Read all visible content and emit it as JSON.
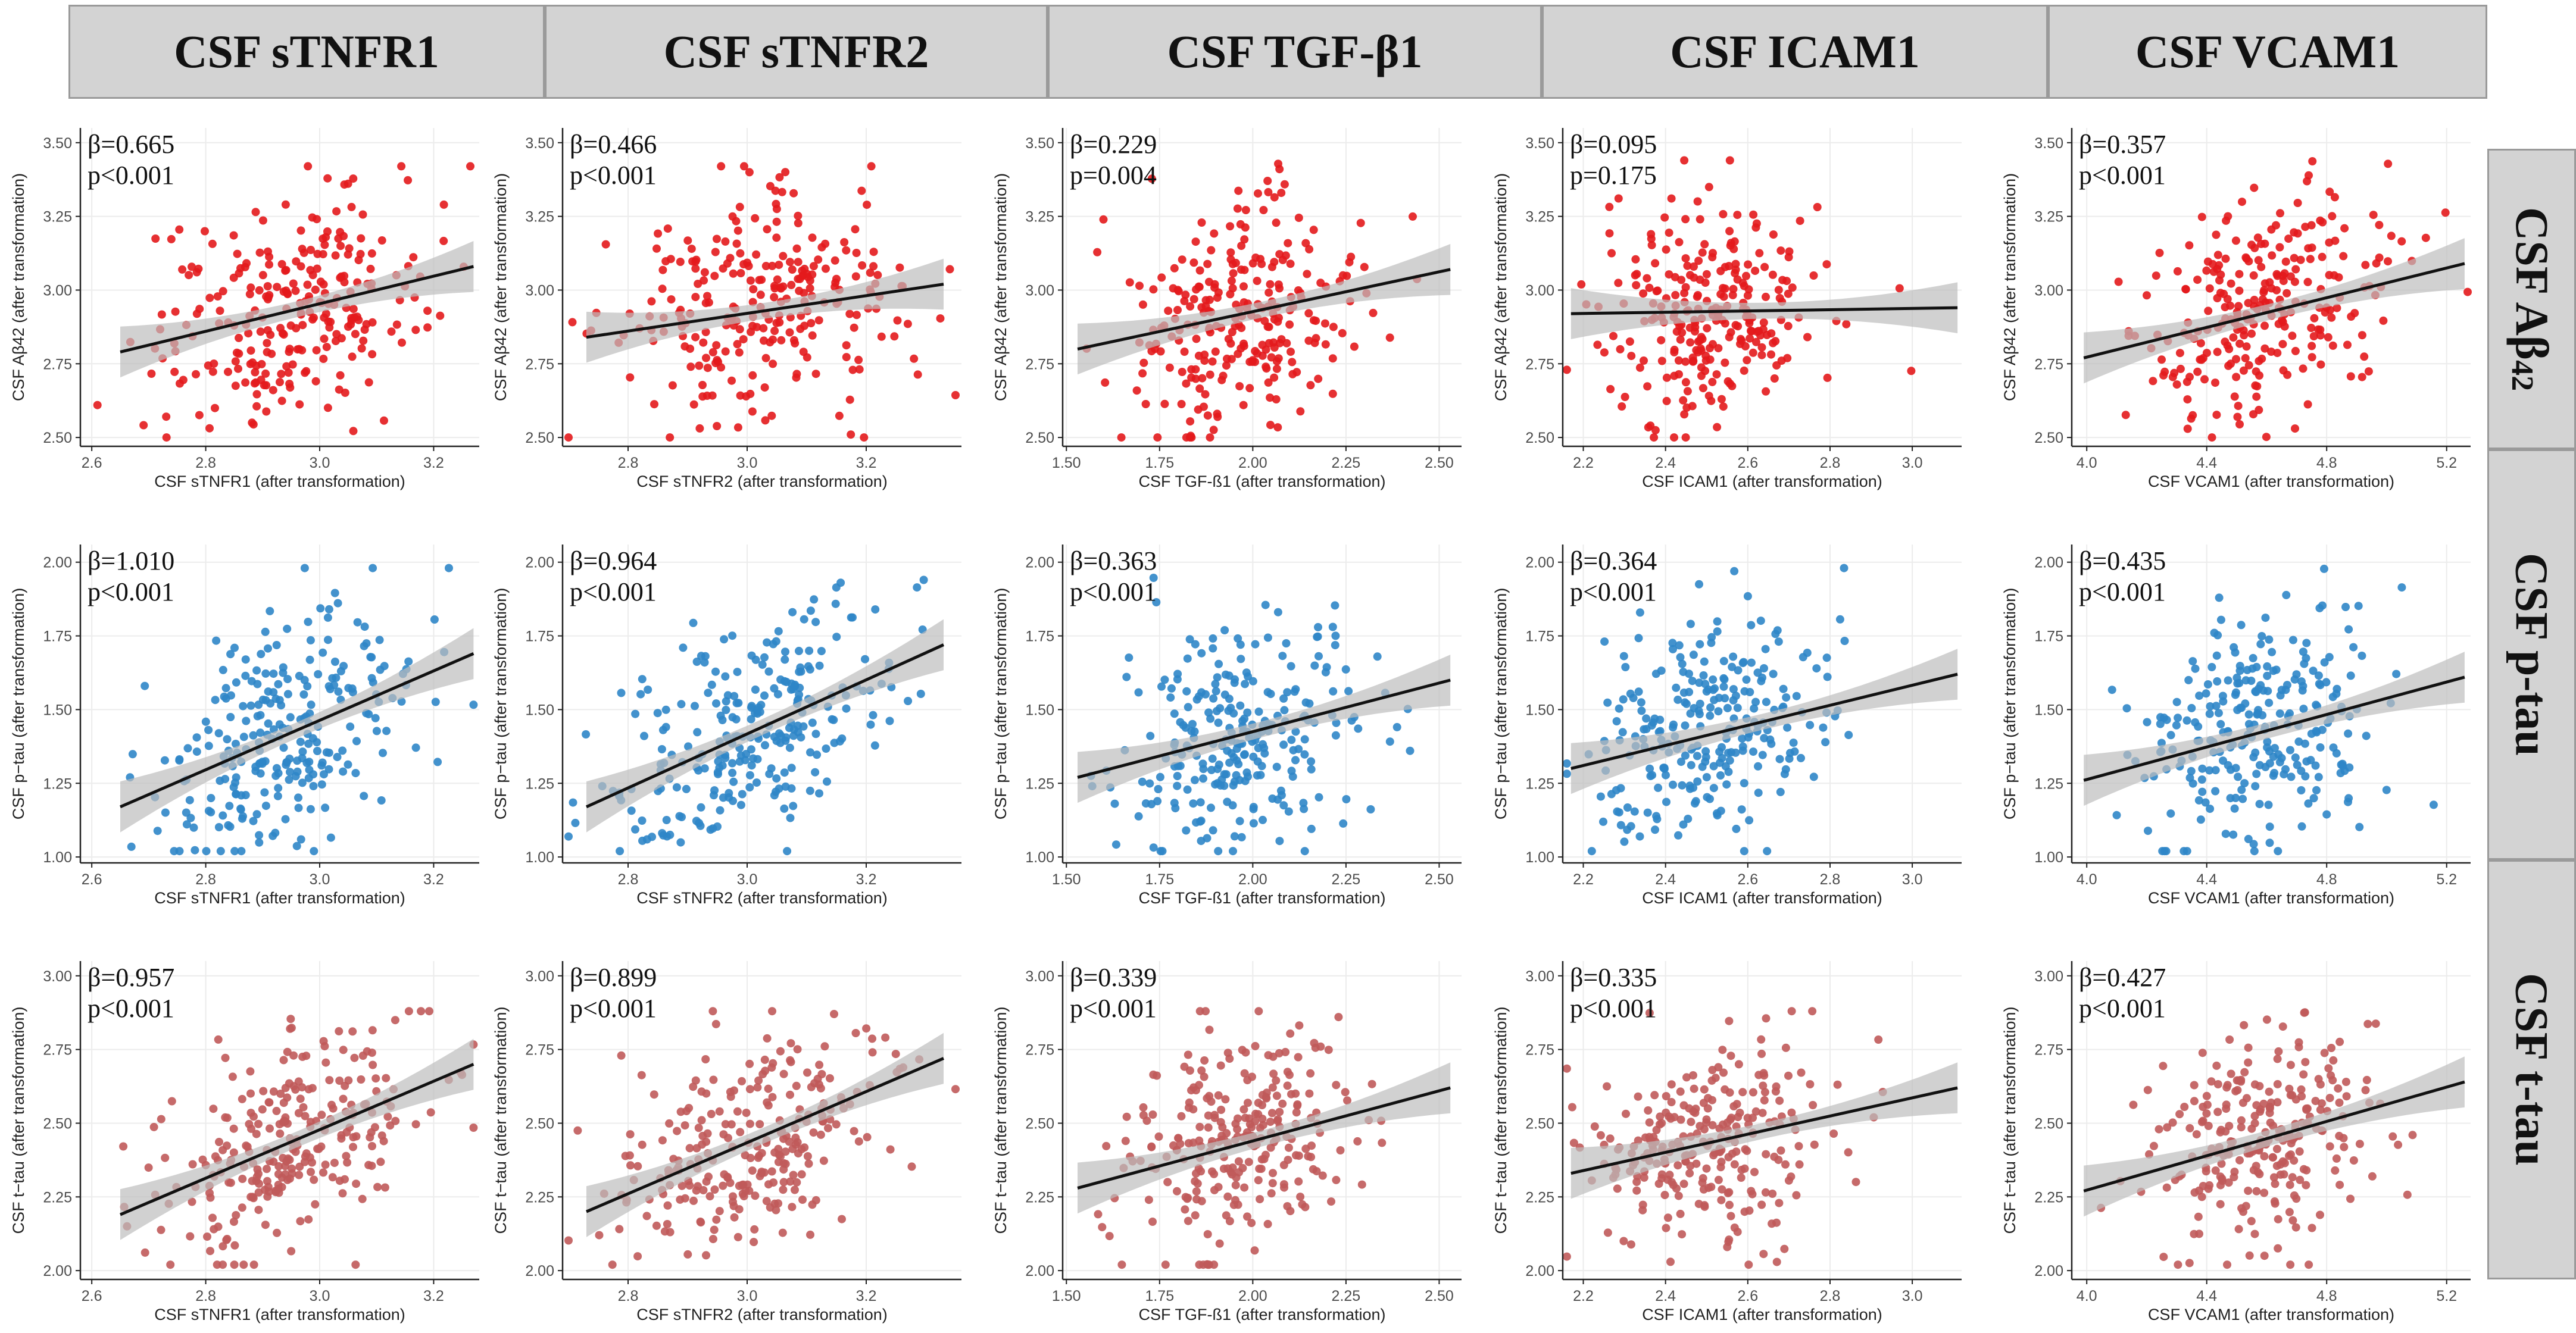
{
  "column_headers": [
    "CSF sTNFR1",
    "CSF sTNFR2",
    "CSF TGF-β1",
    "CSF ICAM1",
    "CSF VCAM1"
  ],
  "row_headers": [
    {
      "main": "CSF Aβ",
      "sub": "42"
    },
    {
      "main": "CSF p-tau",
      "sub": ""
    },
    {
      "main": "CSF t-tau",
      "sub": ""
    }
  ],
  "colors": {
    "abeta": "#e31a1c",
    "ptau": "#2f86c8",
    "ttau": "#c05a5a",
    "line": "#111111",
    "band": "#bdbdbd",
    "header_bg": "#d3d3d3"
  },
  "chart_data": [
    {
      "type": "scatter",
      "panel": "r1c1",
      "title": "",
      "xlabel": "CSF sTNFR1 (after transformation)",
      "ylabel": "CSF Aβ42 (after transformation)",
      "xlim": [
        2.58,
        3.28
      ],
      "ylim": [
        2.47,
        3.55
      ],
      "xticks": [
        "2.6",
        "2.8",
        "3.0",
        "3.2"
      ],
      "yticks": [
        "2.50",
        "2.75",
        "3.00",
        "3.25",
        "3.50"
      ],
      "beta": "β=0.665",
      "p": "p<0.001",
      "fit": {
        "x": [
          2.65,
          3.27
        ],
        "y": [
          2.79,
          3.08
        ]
      },
      "color_key": "abeta",
      "n_points": 260,
      "x_center": 2.94,
      "x_spread": 0.12,
      "y_range": [
        2.5,
        3.42
      ]
    },
    {
      "type": "scatter",
      "panel": "r1c2",
      "title": "",
      "xlabel": "CSF sTNFR2 (after transformation)",
      "ylabel": "CSF Aβ42 (after transformation)",
      "xlim": [
        2.69,
        3.36
      ],
      "ylim": [
        2.47,
        3.55
      ],
      "xticks": [
        "2.8",
        "3.0",
        "3.2"
      ],
      "yticks": [
        "2.50",
        "2.75",
        "3.00",
        "3.25",
        "3.50"
      ],
      "beta": "β=0.466",
      "p": "p<0.001",
      "fit": {
        "x": [
          2.73,
          3.33
        ],
        "y": [
          2.84,
          3.02
        ]
      },
      "color_key": "abeta",
      "n_points": 260,
      "x_center": 3.01,
      "x_spread": 0.12,
      "y_range": [
        2.5,
        3.42
      ]
    },
    {
      "type": "scatter",
      "panel": "r1c3",
      "title": "",
      "xlabel": "CSF TGF-ß1 (after transformation)",
      "ylabel": "CSF Aβ42 (after transformation)",
      "xlim": [
        1.49,
        2.56
      ],
      "ylim": [
        2.47,
        3.55
      ],
      "xticks": [
        "1.50",
        "1.75",
        "2.00",
        "2.25",
        "2.50"
      ],
      "yticks": [
        "2.50",
        "2.75",
        "3.00",
        "3.25",
        "3.50"
      ],
      "beta": "β=0.229",
      "p": "p=0.004",
      "fit": {
        "x": [
          1.53,
          2.53
        ],
        "y": [
          2.8,
          3.07
        ]
      },
      "color_key": "abeta",
      "n_points": 260,
      "x_center": 1.97,
      "x_spread": 0.15,
      "y_range": [
        2.5,
        3.44
      ]
    },
    {
      "type": "scatter",
      "panel": "r1c4",
      "title": "",
      "xlabel": "CSF ICAM1 (after transformation)",
      "ylabel": "CSF Aβ42 (after transformation)",
      "xlim": [
        2.15,
        3.12
      ],
      "ylim": [
        2.47,
        3.55
      ],
      "xticks": [
        "2.2",
        "2.4",
        "2.6",
        "2.8",
        "3.0"
      ],
      "yticks": [
        "2.50",
        "2.75",
        "3.00",
        "3.25",
        "3.50"
      ],
      "beta": "β=0.095",
      "p": "p=0.175",
      "fit": {
        "x": [
          2.17,
          3.11
        ],
        "y": [
          2.92,
          2.94
        ]
      },
      "color_key": "abeta",
      "n_points": 260,
      "x_center": 2.5,
      "x_spread": 0.14,
      "y_range": [
        2.5,
        3.44
      ]
    },
    {
      "type": "scatter",
      "panel": "r1c5",
      "title": "",
      "xlabel": "CSF VCAM1 (after transformation)",
      "ylabel": "CSF Aβ42 (after transformation)",
      "xlim": [
        3.95,
        5.28
      ],
      "ylim": [
        2.47,
        3.55
      ],
      "xticks": [
        "4.0",
        "4.4",
        "4.8",
        "5.2"
      ],
      "yticks": [
        "2.50",
        "2.75",
        "3.00",
        "3.25",
        "3.50"
      ],
      "beta": "β=0.357",
      "p": "p<0.001",
      "fit": {
        "x": [
          3.99,
          5.26
        ],
        "y": [
          2.77,
          3.09
        ]
      },
      "color_key": "abeta",
      "n_points": 260,
      "x_center": 4.58,
      "x_spread": 0.2,
      "y_range": [
        2.5,
        3.44
      ]
    },
    {
      "type": "scatter",
      "panel": "r2c1",
      "title": "",
      "xlabel": "CSF sTNFR1 (after transformation)",
      "ylabel": "CSF p−tau (after transformation)",
      "xlim": [
        2.58,
        3.28
      ],
      "ylim": [
        0.98,
        2.06
      ],
      "xticks": [
        "2.6",
        "2.8",
        "3.0",
        "3.2"
      ],
      "yticks": [
        "1.00",
        "1.25",
        "1.50",
        "1.75",
        "2.00"
      ],
      "beta": "β=1.010",
      "p": "p<0.001",
      "fit": {
        "x": [
          2.65,
          3.27
        ],
        "y": [
          1.17,
          1.69
        ]
      },
      "color_key": "ptau",
      "n_points": 260,
      "x_center": 2.94,
      "x_spread": 0.12,
      "y_range": [
        1.02,
        1.98
      ]
    },
    {
      "type": "scatter",
      "panel": "r2c2",
      "title": "",
      "xlabel": "CSF sTNFR2 (after transformation)",
      "ylabel": "CSF p−tau (after transformation)",
      "xlim": [
        2.69,
        3.36
      ],
      "ylim": [
        0.98,
        2.06
      ],
      "xticks": [
        "2.8",
        "3.0",
        "3.2"
      ],
      "yticks": [
        "1.00",
        "1.25",
        "1.50",
        "1.75",
        "2.00"
      ],
      "beta": "β=0.964",
      "p": "p<0.001",
      "fit": {
        "x": [
          2.73,
          3.33
        ],
        "y": [
          1.17,
          1.72
        ]
      },
      "color_key": "ptau",
      "n_points": 260,
      "x_center": 3.01,
      "x_spread": 0.12,
      "y_range": [
        1.02,
        1.98
      ]
    },
    {
      "type": "scatter",
      "panel": "r2c3",
      "title": "",
      "xlabel": "CSF TGF-ß1 (after transformation)",
      "ylabel": "CSF p−tau (after transformation)",
      "xlim": [
        1.49,
        2.56
      ],
      "ylim": [
        0.98,
        2.06
      ],
      "xticks": [
        "1.50",
        "1.75",
        "2.00",
        "2.25",
        "2.50"
      ],
      "yticks": [
        "1.00",
        "1.25",
        "1.50",
        "1.75",
        "2.00"
      ],
      "beta": "β=0.363",
      "p": "p<0.001",
      "fit": {
        "x": [
          1.53,
          2.53
        ],
        "y": [
          1.27,
          1.6
        ]
      },
      "color_key": "ptau",
      "n_points": 260,
      "x_center": 1.97,
      "x_spread": 0.15,
      "y_range": [
        1.02,
        1.98
      ]
    },
    {
      "type": "scatter",
      "panel": "r2c4",
      "title": "",
      "xlabel": "CSF ICAM1 (after transformation)",
      "ylabel": "CSF p−tau (after transformation)",
      "xlim": [
        2.15,
        3.12
      ],
      "ylim": [
        0.98,
        2.06
      ],
      "xticks": [
        "2.2",
        "2.4",
        "2.6",
        "2.8",
        "3.0"
      ],
      "yticks": [
        "1.00",
        "1.25",
        "1.50",
        "1.75",
        "2.00"
      ],
      "beta": "β=0.364",
      "p": "p<0.001",
      "fit": {
        "x": [
          2.17,
          3.11
        ],
        "y": [
          1.3,
          1.62
        ]
      },
      "color_key": "ptau",
      "n_points": 260,
      "x_center": 2.5,
      "x_spread": 0.14,
      "y_range": [
        1.02,
        1.98
      ]
    },
    {
      "type": "scatter",
      "panel": "r2c5",
      "title": "",
      "xlabel": "CSF VCAM1 (after transformation)",
      "ylabel": "CSF p−tau (after transformation)",
      "xlim": [
        3.95,
        5.28
      ],
      "ylim": [
        0.98,
        2.06
      ],
      "xticks": [
        "4.0",
        "4.4",
        "4.8",
        "5.2"
      ],
      "yticks": [
        "1.00",
        "1.25",
        "1.50",
        "1.75",
        "2.00"
      ],
      "beta": "β=0.435",
      "p": "p<0.001",
      "fit": {
        "x": [
          3.99,
          5.26
        ],
        "y": [
          1.26,
          1.61
        ]
      },
      "color_key": "ptau",
      "n_points": 260,
      "x_center": 4.58,
      "x_spread": 0.2,
      "y_range": [
        1.02,
        1.98
      ]
    },
    {
      "type": "scatter",
      "panel": "r3c1",
      "title": "",
      "xlabel": "CSF sTNFR1 (after transformation)",
      "ylabel": "CSF t−tau (after transformation)",
      "xlim": [
        2.58,
        3.28
      ],
      "ylim": [
        1.97,
        3.05
      ],
      "xticks": [
        "2.6",
        "2.8",
        "3.0",
        "3.2"
      ],
      "yticks": [
        "2.00",
        "2.25",
        "2.50",
        "2.75",
        "3.00"
      ],
      "beta": "β=0.957",
      "p": "p<0.001",
      "fit": {
        "x": [
          2.65,
          3.27
        ],
        "y": [
          2.19,
          2.7
        ]
      },
      "color_key": "ttau",
      "n_points": 260,
      "x_center": 2.94,
      "x_spread": 0.12,
      "y_range": [
        2.02,
        2.88
      ]
    },
    {
      "type": "scatter",
      "panel": "r3c2",
      "title": "",
      "xlabel": "CSF sTNFR2 (after transformation)",
      "ylabel": "CSF t−tau (after transformation)",
      "xlim": [
        2.69,
        3.36
      ],
      "ylim": [
        1.97,
        3.05
      ],
      "xticks": [
        "2.8",
        "3.0",
        "3.2"
      ],
      "yticks": [
        "2.00",
        "2.25",
        "2.50",
        "2.75",
        "3.00"
      ],
      "beta": "β=0.899",
      "p": "p<0.001",
      "fit": {
        "x": [
          2.73,
          3.33
        ],
        "y": [
          2.2,
          2.72
        ]
      },
      "color_key": "ttau",
      "n_points": 260,
      "x_center": 3.01,
      "x_spread": 0.12,
      "y_range": [
        2.02,
        2.88
      ]
    },
    {
      "type": "scatter",
      "panel": "r3c3",
      "title": "",
      "xlabel": "CSF TGF-ß1 (after transformation)",
      "ylabel": "CSF t−tau (after transformation)",
      "xlim": [
        1.49,
        2.56
      ],
      "ylim": [
        1.97,
        3.05
      ],
      "xticks": [
        "1.50",
        "1.75",
        "2.00",
        "2.25",
        "2.50"
      ],
      "yticks": [
        "2.00",
        "2.25",
        "2.50",
        "2.75",
        "3.00"
      ],
      "beta": "β=0.339",
      "p": "p<0.001",
      "fit": {
        "x": [
          1.53,
          2.53
        ],
        "y": [
          2.28,
          2.62
        ]
      },
      "color_key": "ttau",
      "n_points": 260,
      "x_center": 1.97,
      "x_spread": 0.15,
      "y_range": [
        2.02,
        2.88
      ]
    },
    {
      "type": "scatter",
      "panel": "r3c4",
      "title": "",
      "xlabel": "CSF ICAM1 (after transformation)",
      "ylabel": "CSF t−tau (after transformation)",
      "xlim": [
        2.15,
        3.12
      ],
      "ylim": [
        1.97,
        3.05
      ],
      "xticks": [
        "2.2",
        "2.4",
        "2.6",
        "2.8",
        "3.0"
      ],
      "yticks": [
        "2.00",
        "2.25",
        "2.50",
        "2.75",
        "3.00"
      ],
      "beta": "β=0.335",
      "p": "p<0.001",
      "fit": {
        "x": [
          2.17,
          3.11
        ],
        "y": [
          2.33,
          2.62
        ]
      },
      "color_key": "ttau",
      "n_points": 260,
      "x_center": 2.5,
      "x_spread": 0.14,
      "y_range": [
        2.02,
        2.88
      ]
    },
    {
      "type": "scatter",
      "panel": "r3c5",
      "title": "",
      "xlabel": "CSF VCAM1 (after transformation)",
      "ylabel": "CSF t−tau (after transformation)",
      "xlim": [
        3.95,
        5.28
      ],
      "ylim": [
        1.97,
        3.05
      ],
      "xticks": [
        "4.0",
        "4.4",
        "4.8",
        "5.2"
      ],
      "yticks": [
        "2.00",
        "2.25",
        "2.50",
        "2.75",
        "3.00"
      ],
      "beta": "β=0.427",
      "p": "p<0.001",
      "fit": {
        "x": [
          3.99,
          5.26
        ],
        "y": [
          2.27,
          2.64
        ]
      },
      "color_key": "ttau",
      "n_points": 260,
      "x_center": 4.58,
      "x_spread": 0.2,
      "y_range": [
        2.02,
        2.88
      ]
    }
  ]
}
